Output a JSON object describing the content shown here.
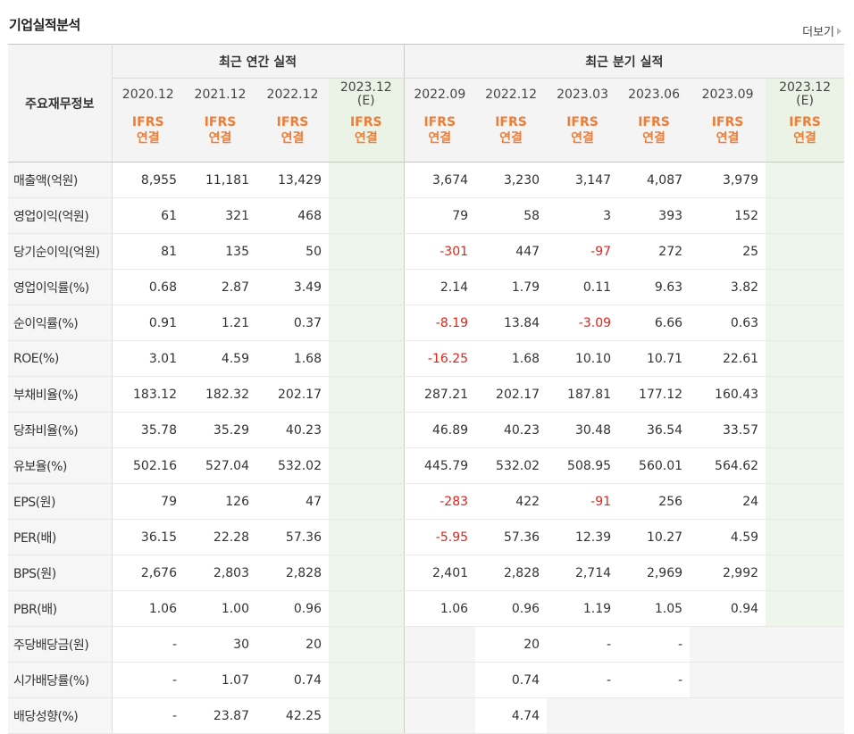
{
  "page_title": "기업실적분석",
  "more_label": "더보기",
  "header": {
    "row_label": "주요재무정보",
    "annual_label": "최근 연간 실적",
    "quarter_label": "최근 분기 실적",
    "periods": [
      {
        "label": "2020.12",
        "est": "",
        "std": "IFRS",
        "basis": "연결"
      },
      {
        "label": "2021.12",
        "est": "",
        "std": "IFRS",
        "basis": "연결"
      },
      {
        "label": "2022.12",
        "est": "",
        "std": "IFRS",
        "basis": "연결"
      },
      {
        "label": "2023.12",
        "est": "(E)",
        "std": "IFRS",
        "basis": "연결"
      },
      {
        "label": "2022.09",
        "est": "",
        "std": "IFRS",
        "basis": "연결"
      },
      {
        "label": "2022.12",
        "est": "",
        "std": "IFRS",
        "basis": "연결"
      },
      {
        "label": "2023.03",
        "est": "",
        "std": "IFRS",
        "basis": "연결"
      },
      {
        "label": "2023.06",
        "est": "",
        "std": "IFRS",
        "basis": "연결"
      },
      {
        "label": "2023.09",
        "est": "",
        "std": "IFRS",
        "basis": "연결"
      },
      {
        "label": "2023.12",
        "est": "(E)",
        "std": "IFRS",
        "basis": "연결"
      }
    ]
  },
  "rows": [
    {
      "label": "매출액(억원)",
      "values": [
        "8,955",
        "11,181",
        "13,429",
        "",
        "3,674",
        "3,230",
        "3,147",
        "4,087",
        "3,979",
        ""
      ]
    },
    {
      "label": "영업이익(억원)",
      "values": [
        "61",
        "321",
        "468",
        "",
        "79",
        "58",
        "3",
        "393",
        "152",
        ""
      ]
    },
    {
      "label": "당기순이익(억원)",
      "values": [
        "81",
        "135",
        "50",
        "",
        "-301",
        "447",
        "-97",
        "272",
        "25",
        ""
      ]
    },
    {
      "label": "영업이익률(%)",
      "values": [
        "0.68",
        "2.87",
        "3.49",
        "",
        "2.14",
        "1.79",
        "0.11",
        "9.63",
        "3.82",
        ""
      ]
    },
    {
      "label": "순이익률(%)",
      "values": [
        "0.91",
        "1.21",
        "0.37",
        "",
        "-8.19",
        "13.84",
        "-3.09",
        "6.66",
        "0.63",
        ""
      ]
    },
    {
      "label": "ROE(%)",
      "values": [
        "3.01",
        "4.59",
        "1.68",
        "",
        "-16.25",
        "1.68",
        "10.10",
        "10.71",
        "22.61",
        ""
      ]
    },
    {
      "label": "부채비율(%)",
      "values": [
        "183.12",
        "182.32",
        "202.17",
        "",
        "287.21",
        "202.17",
        "187.81",
        "177.12",
        "160.43",
        ""
      ]
    },
    {
      "label": "당좌비율(%)",
      "values": [
        "35.78",
        "35.29",
        "40.23",
        "",
        "46.89",
        "40.23",
        "30.48",
        "36.54",
        "33.57",
        ""
      ]
    },
    {
      "label": "유보율(%)",
      "values": [
        "502.16",
        "527.04",
        "532.02",
        "",
        "445.79",
        "532.02",
        "508.95",
        "560.01",
        "564.62",
        ""
      ]
    },
    {
      "label": "EPS(원)",
      "values": [
        "79",
        "126",
        "47",
        "",
        "-283",
        "422",
        "-91",
        "256",
        "24",
        ""
      ]
    },
    {
      "label": "PER(배)",
      "values": [
        "36.15",
        "22.28",
        "57.36",
        "",
        "-5.95",
        "57.36",
        "12.39",
        "10.27",
        "4.59",
        ""
      ]
    },
    {
      "label": "BPS(원)",
      "values": [
        "2,676",
        "2,803",
        "2,828",
        "",
        "2,401",
        "2,828",
        "2,714",
        "2,969",
        "2,992",
        ""
      ]
    },
    {
      "label": "PBR(배)",
      "values": [
        "1.06",
        "1.00",
        "0.96",
        "",
        "1.06",
        "0.96",
        "1.19",
        "1.05",
        "0.94",
        ""
      ]
    },
    {
      "label": "주당배당금(원)",
      "values": [
        "-",
        "30",
        "20",
        "",
        "",
        "20",
        "-",
        "-",
        "",
        ""
      ]
    },
    {
      "label": "시가배당률(%)",
      "values": [
        "-",
        "1.07",
        "0.74",
        "",
        "",
        "0.74",
        "-",
        "-",
        "",
        ""
      ]
    },
    {
      "label": "배당성향(%)",
      "values": [
        "-",
        "23.87",
        "42.25",
        "",
        "",
        "4.74",
        "",
        "",
        "",
        ""
      ]
    }
  ]
}
